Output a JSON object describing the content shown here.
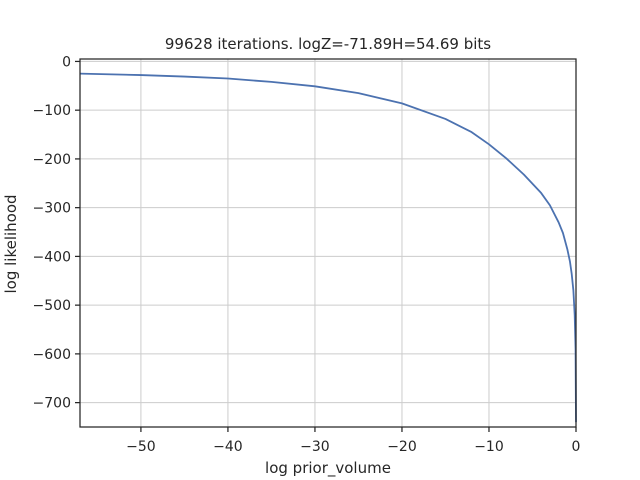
{
  "chart_data": {
    "type": "line",
    "title": "99628 iterations. logZ=-71.89H=54.69 bits",
    "xlabel": "log prior_volume",
    "ylabel": "log likelihood",
    "xlim": [
      -57,
      0
    ],
    "ylim": [
      -750,
      5
    ],
    "grid": true,
    "x_ticks": [
      -50,
      -40,
      -30,
      -20,
      -10,
      0
    ],
    "x_tick_labels": [
      "−50",
      "−40",
      "−30",
      "−20",
      "−10",
      "0"
    ],
    "y_ticks": [
      0,
      -100,
      -200,
      -300,
      -400,
      -500,
      -600,
      -700
    ],
    "y_tick_labels": [
      "0",
      "−100",
      "−200",
      "−300",
      "−400",
      "−500",
      "−600",
      "−700"
    ],
    "line_color": "#4c72b0",
    "series": [
      {
        "x": [
          -57,
          -50,
          -45,
          -40,
          -35,
          -30,
          -25,
          -20,
          -15,
          -12,
          -10,
          -8,
          -6,
          -4,
          -3,
          -2,
          -1.5,
          -1,
          -0.7,
          -0.5,
          -0.3,
          -0.15,
          -0.05,
          0
        ],
        "y": [
          -25,
          -28,
          -31,
          -35,
          -42,
          -51,
          -65,
          -86,
          -118,
          -145,
          -170,
          -199,
          -232,
          -270,
          -295,
          -330,
          -352,
          -385,
          -410,
          -435,
          -470,
          -520,
          -590,
          -740
        ]
      }
    ]
  }
}
